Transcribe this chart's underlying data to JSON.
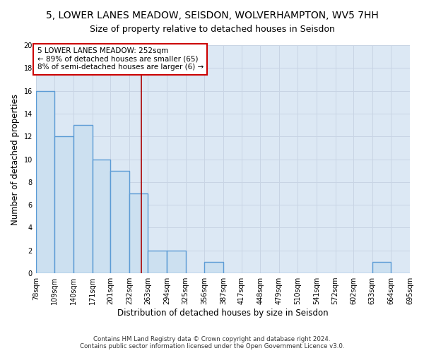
{
  "title": "5, LOWER LANES MEADOW, SEISDON, WOLVERHAMPTON, WV5 7HH",
  "subtitle": "Size of property relative to detached houses in Seisdon",
  "xlabel": "Distribution of detached houses by size in Seisdon",
  "ylabel": "Number of detached properties",
  "bin_edges": [
    78,
    109,
    140,
    171,
    201,
    232,
    263,
    294,
    325,
    356,
    387,
    417,
    448,
    479,
    510,
    541,
    572,
    602,
    633,
    664,
    695
  ],
  "bar_heights": [
    16,
    12,
    13,
    10,
    9,
    7,
    2,
    2,
    0,
    1,
    0,
    0,
    0,
    0,
    0,
    0,
    0,
    0,
    1,
    0
  ],
  "bar_color": "#cce0f0",
  "bar_edge_color": "#5b9bd5",
  "bar_linewidth": 1.0,
  "grid_color": "#c8d4e4",
  "background_color": "#dce8f4",
  "property_line_x": 252,
  "property_line_color": "#aa0000",
  "annotation_text": "5 LOWER LANES MEADOW: 252sqm\n← 89% of detached houses are smaller (65)\n8% of semi-detached houses are larger (6) →",
  "annotation_box_color": "#ffffff",
  "annotation_box_edge_color": "#cc0000",
  "annotation_fontsize": 7.5,
  "ylim": [
    0,
    20
  ],
  "yticks": [
    0,
    2,
    4,
    6,
    8,
    10,
    12,
    14,
    16,
    18,
    20
  ],
  "footer_text": "Contains HM Land Registry data © Crown copyright and database right 2024.\nContains public sector information licensed under the Open Government Licence v3.0.",
  "title_fontsize": 10,
  "subtitle_fontsize": 9,
  "xlabel_fontsize": 8.5,
  "ylabel_fontsize": 8.5,
  "tick_fontsize": 7
}
